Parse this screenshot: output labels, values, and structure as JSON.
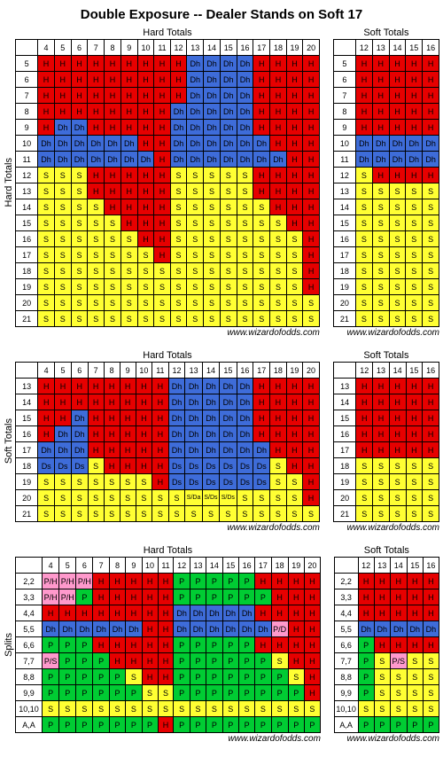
{
  "title": "Double Exposure -- Dealer Stands on Soft 17",
  "credit": "www.wizardofodds.com",
  "colors": {
    "H": "#e60000",
    "S": "#ffff33",
    "Dh": "#3e6cd9",
    "Ds": "#3e6cd9",
    "P": "#00cc33",
    "P/H": "#ff99cc",
    "P/S": "#ff99cc",
    "P/D": "#ff99cc",
    "S/Da": "#ffff33",
    "S/Ds": "#ffff33",
    "text": "#000000",
    "border": "#000000",
    "bg": "#ffffff"
  },
  "hard_cols": [
    "4",
    "5",
    "6",
    "7",
    "8",
    "9",
    "10",
    "11",
    "12",
    "13",
    "14",
    "15",
    "16",
    "17",
    "18",
    "19",
    "20"
  ],
  "soft_cols": [
    "12",
    "13",
    "14",
    "15",
    "16"
  ],
  "sections": [
    {
      "side_label": "Hard Totals",
      "hard_title": "Hard Totals",
      "soft_title": "Soft Totals",
      "rows": [
        "5",
        "6",
        "7",
        "8",
        "9",
        "10",
        "11",
        "12",
        "13",
        "14",
        "15",
        "16",
        "17",
        "18",
        "19",
        "20",
        "21"
      ],
      "hard": [
        [
          "H",
          "H",
          "H",
          "H",
          "H",
          "H",
          "H",
          "H",
          "H",
          "Dh",
          "Dh",
          "Dh",
          "Dh",
          "H",
          "H",
          "H",
          "H"
        ],
        [
          "H",
          "H",
          "H",
          "H",
          "H",
          "H",
          "H",
          "H",
          "H",
          "Dh",
          "Dh",
          "Dh",
          "Dh",
          "H",
          "H",
          "H",
          "H"
        ],
        [
          "H",
          "H",
          "H",
          "H",
          "H",
          "H",
          "H",
          "H",
          "H",
          "Dh",
          "Dh",
          "Dh",
          "Dh",
          "H",
          "H",
          "H",
          "H"
        ],
        [
          "H",
          "H",
          "H",
          "H",
          "H",
          "H",
          "H",
          "H",
          "Dh",
          "Dh",
          "Dh",
          "Dh",
          "Dh",
          "H",
          "H",
          "H",
          "H"
        ],
        [
          "H",
          "Dh",
          "Dh",
          "H",
          "H",
          "H",
          "H",
          "H",
          "Dh",
          "Dh",
          "Dh",
          "Dh",
          "Dh",
          "H",
          "H",
          "H",
          "H"
        ],
        [
          "Dh",
          "Dh",
          "Dh",
          "Dh",
          "Dh",
          "Dh",
          "H",
          "H",
          "Dh",
          "Dh",
          "Dh",
          "Dh",
          "Dh",
          "Dh",
          "H",
          "H",
          "H"
        ],
        [
          "Dh",
          "Dh",
          "Dh",
          "Dh",
          "Dh",
          "Dh",
          "Dh",
          "H",
          "Dh",
          "Dh",
          "Dh",
          "Dh",
          "Dh",
          "Dh",
          "Dh",
          "H",
          "H"
        ],
        [
          "S",
          "S",
          "S",
          "H",
          "H",
          "H",
          "H",
          "H",
          "S",
          "S",
          "S",
          "S",
          "S",
          "H",
          "H",
          "H",
          "H"
        ],
        [
          "S",
          "S",
          "S",
          "H",
          "H",
          "H",
          "H",
          "H",
          "S",
          "S",
          "S",
          "S",
          "S",
          "H",
          "H",
          "H",
          "H"
        ],
        [
          "S",
          "S",
          "S",
          "S",
          "H",
          "H",
          "H",
          "H",
          "S",
          "S",
          "S",
          "S",
          "S",
          "S",
          "H",
          "H",
          "H"
        ],
        [
          "S",
          "S",
          "S",
          "S",
          "S",
          "H",
          "H",
          "H",
          "S",
          "S",
          "S",
          "S",
          "S",
          "S",
          "S",
          "H",
          "H"
        ],
        [
          "S",
          "S",
          "S",
          "S",
          "S",
          "S",
          "H",
          "H",
          "S",
          "S",
          "S",
          "S",
          "S",
          "S",
          "S",
          "S",
          "H"
        ],
        [
          "S",
          "S",
          "S",
          "S",
          "S",
          "S",
          "S",
          "H",
          "S",
          "S",
          "S",
          "S",
          "S",
          "S",
          "S",
          "S",
          "H"
        ],
        [
          "S",
          "S",
          "S",
          "S",
          "S",
          "S",
          "S",
          "S",
          "S",
          "S",
          "S",
          "S",
          "S",
          "S",
          "S",
          "S",
          "H"
        ],
        [
          "S",
          "S",
          "S",
          "S",
          "S",
          "S",
          "S",
          "S",
          "S",
          "S",
          "S",
          "S",
          "S",
          "S",
          "S",
          "S",
          "H"
        ],
        [
          "S",
          "S",
          "S",
          "S",
          "S",
          "S",
          "S",
          "S",
          "S",
          "S",
          "S",
          "S",
          "S",
          "S",
          "S",
          "S",
          "S"
        ],
        [
          "S",
          "S",
          "S",
          "S",
          "S",
          "S",
          "S",
          "S",
          "S",
          "S",
          "S",
          "S",
          "S",
          "S",
          "S",
          "S",
          "S"
        ]
      ],
      "soft": [
        [
          "H",
          "H",
          "H",
          "H",
          "H"
        ],
        [
          "H",
          "H",
          "H",
          "H",
          "H"
        ],
        [
          "H",
          "H",
          "H",
          "H",
          "H"
        ],
        [
          "H",
          "H",
          "H",
          "H",
          "H"
        ],
        [
          "H",
          "H",
          "H",
          "H",
          "H"
        ],
        [
          "Dh",
          "Dh",
          "Dh",
          "Dh",
          "Dh"
        ],
        [
          "Dh",
          "Dh",
          "Dh",
          "Dh",
          "Dh"
        ],
        [
          "S",
          "H",
          "H",
          "H",
          "H"
        ],
        [
          "S",
          "S",
          "S",
          "S",
          "S"
        ],
        [
          "S",
          "S",
          "S",
          "S",
          "S"
        ],
        [
          "S",
          "S",
          "S",
          "S",
          "S"
        ],
        [
          "S",
          "S",
          "S",
          "S",
          "S"
        ],
        [
          "S",
          "S",
          "S",
          "S",
          "S"
        ],
        [
          "S",
          "S",
          "S",
          "S",
          "S"
        ],
        [
          "S",
          "S",
          "S",
          "S",
          "S"
        ],
        [
          "S",
          "S",
          "S",
          "S",
          "S"
        ],
        [
          "S",
          "S",
          "S",
          "S",
          "S"
        ]
      ]
    },
    {
      "side_label": "Soft Totals",
      "hard_title": "Hard Totals",
      "soft_title": "Soft Totals",
      "rows": [
        "13",
        "14",
        "15",
        "16",
        "17",
        "18",
        "19",
        "20",
        "21"
      ],
      "hard": [
        [
          "H",
          "H",
          "H",
          "H",
          "H",
          "H",
          "H",
          "H",
          "Dh",
          "Dh",
          "Dh",
          "Dh",
          "Dh",
          "H",
          "H",
          "H",
          "H"
        ],
        [
          "H",
          "H",
          "H",
          "H",
          "H",
          "H",
          "H",
          "H",
          "Dh",
          "Dh",
          "Dh",
          "Dh",
          "Dh",
          "H",
          "H",
          "H",
          "H"
        ],
        [
          "H",
          "H",
          "Dh",
          "H",
          "H",
          "H",
          "H",
          "H",
          "Dh",
          "Dh",
          "Dh",
          "Dh",
          "Dh",
          "H",
          "H",
          "H",
          "H"
        ],
        [
          "H",
          "Dh",
          "Dh",
          "H",
          "H",
          "H",
          "H",
          "H",
          "Dh",
          "Dh",
          "Dh",
          "Dh",
          "Dh",
          "H",
          "H",
          "H",
          "H"
        ],
        [
          "Dh",
          "Dh",
          "Dh",
          "H",
          "H",
          "H",
          "H",
          "H",
          "Dh",
          "Dh",
          "Dh",
          "Dh",
          "Dh",
          "Dh",
          "H",
          "H",
          "H"
        ],
        [
          "Ds",
          "Ds",
          "Ds",
          "S",
          "H",
          "H",
          "H",
          "H",
          "Ds",
          "Ds",
          "Ds",
          "Ds",
          "Ds",
          "Ds",
          "S",
          "H",
          "H"
        ],
        [
          "S",
          "S",
          "S",
          "S",
          "S",
          "S",
          "S",
          "H",
          "Ds",
          "Ds",
          "Ds",
          "Ds",
          "Ds",
          "Ds",
          "S",
          "S",
          "H"
        ],
        [
          "S",
          "S",
          "S",
          "S",
          "S",
          "S",
          "S",
          "S",
          "S",
          "S/Da",
          "S/Ds",
          "S/Ds",
          "S",
          "S",
          "S",
          "S",
          "H"
        ],
        [
          "S",
          "S",
          "S",
          "S",
          "S",
          "S",
          "S",
          "S",
          "S",
          "S",
          "S",
          "S",
          "S",
          "S",
          "S",
          "S",
          "S"
        ]
      ],
      "soft": [
        [
          "H",
          "H",
          "H",
          "H",
          "H"
        ],
        [
          "H",
          "H",
          "H",
          "H",
          "H"
        ],
        [
          "H",
          "H",
          "H",
          "H",
          "H"
        ],
        [
          "H",
          "H",
          "H",
          "H",
          "H"
        ],
        [
          "H",
          "H",
          "H",
          "H",
          "H"
        ],
        [
          "S",
          "S",
          "S",
          "S",
          "S"
        ],
        [
          "S",
          "S",
          "S",
          "S",
          "S"
        ],
        [
          "S",
          "S",
          "S",
          "S",
          "S"
        ],
        [
          "S",
          "S",
          "S",
          "S",
          "S"
        ]
      ]
    },
    {
      "side_label": "Splits",
      "hard_title": "Hard Totals",
      "soft_title": "Soft Totals",
      "rows": [
        "2,2",
        "3,3",
        "4,4",
        "5,5",
        "6,6",
        "7,7",
        "8,8",
        "9,9",
        "10,10",
        "A,A"
      ],
      "hard": [
        [
          "P/H",
          "P/H",
          "P/H",
          "H",
          "H",
          "H",
          "H",
          "H",
          "P",
          "P",
          "P",
          "P",
          "P",
          "H",
          "H",
          "H",
          "H"
        ],
        [
          "P/H",
          "P/H",
          "P",
          "H",
          "H",
          "H",
          "H",
          "H",
          "P",
          "P",
          "P",
          "P",
          "P",
          "P",
          "H",
          "H",
          "H"
        ],
        [
          "H",
          "H",
          "H",
          "H",
          "H",
          "H",
          "H",
          "H",
          "Dh",
          "Dh",
          "Dh",
          "Dh",
          "Dh",
          "H",
          "H",
          "H",
          "H"
        ],
        [
          "Dh",
          "Dh",
          "Dh",
          "Dh",
          "Dh",
          "Dh",
          "H",
          "H",
          "Dh",
          "Dh",
          "Dh",
          "Dh",
          "Dh",
          "Dh",
          "P/D",
          "H",
          "H"
        ],
        [
          "P",
          "P",
          "P",
          "H",
          "H",
          "H",
          "H",
          "H",
          "P",
          "P",
          "P",
          "P",
          "P",
          "H",
          "H",
          "H",
          "H"
        ],
        [
          "P/S",
          "P",
          "P",
          "P",
          "H",
          "H",
          "H",
          "H",
          "P",
          "P",
          "P",
          "P",
          "P",
          "P",
          "S",
          "H",
          "H"
        ],
        [
          "P",
          "P",
          "P",
          "P",
          "P",
          "S",
          "H",
          "H",
          "P",
          "P",
          "P",
          "P",
          "P",
          "P",
          "P",
          "S",
          "H"
        ],
        [
          "P",
          "P",
          "P",
          "P",
          "P",
          "P",
          "S",
          "S",
          "P",
          "P",
          "P",
          "P",
          "P",
          "P",
          "P",
          "P",
          "H"
        ],
        [
          "S",
          "S",
          "S",
          "S",
          "S",
          "S",
          "S",
          "S",
          "S",
          "S",
          "S",
          "S",
          "S",
          "S",
          "S",
          "S",
          "S"
        ],
        [
          "P",
          "P",
          "P",
          "P",
          "P",
          "P",
          "P",
          "H",
          "P",
          "P",
          "P",
          "P",
          "P",
          "P",
          "P",
          "P",
          "P"
        ]
      ],
      "soft": [
        [
          "H",
          "H",
          "H",
          "H",
          "H"
        ],
        [
          "H",
          "H",
          "H",
          "H",
          "H"
        ],
        [
          "H",
          "H",
          "H",
          "H",
          "H"
        ],
        [
          "Dh",
          "Dh",
          "Dh",
          "Dh",
          "Dh"
        ],
        [
          "P",
          "H",
          "H",
          "H",
          "H"
        ],
        [
          "P",
          "S",
          "P/S",
          "S",
          "S"
        ],
        [
          "P",
          "S",
          "S",
          "S",
          "S"
        ],
        [
          "P",
          "S",
          "S",
          "S",
          "S"
        ],
        [
          "S",
          "S",
          "S",
          "S",
          "S"
        ],
        [
          "P",
          "P",
          "P",
          "P",
          "P"
        ]
      ]
    }
  ]
}
